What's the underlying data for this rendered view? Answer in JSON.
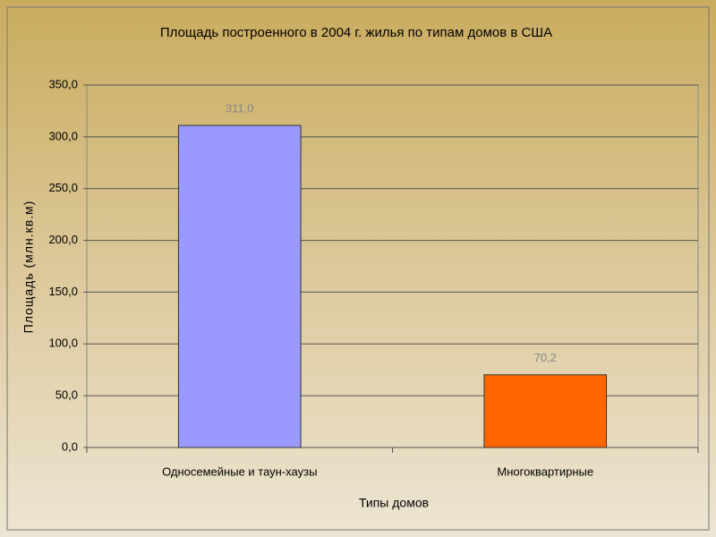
{
  "chart_data": {
    "type": "bar",
    "title": "Площадь построенного в 2004 г. жилья по типам домов в США",
    "y_label": "Площадь (млн.кв.м)",
    "x_label": "Типы домов",
    "categories": [
      "Односемейные и таун-хаузы",
      "Многоквартирные"
    ],
    "values": [
      311.0,
      70.2
    ],
    "value_labels": [
      "311,0",
      "70,2"
    ],
    "colors": [
      "#9999ff",
      "#ff6600"
    ],
    "ylim": [
      0,
      350
    ],
    "yticks": [
      {
        "value": 0,
        "label": "0,0"
      },
      {
        "value": 50,
        "label": "50,0"
      },
      {
        "value": 100,
        "label": "100,0"
      },
      {
        "value": 150,
        "label": "150,0"
      },
      {
        "value": 200,
        "label": "200,0"
      },
      {
        "value": 250,
        "label": "250,0"
      },
      {
        "value": 300,
        "label": "300,0"
      },
      {
        "value": 350,
        "label": "350,0"
      }
    ],
    "grid": true
  }
}
